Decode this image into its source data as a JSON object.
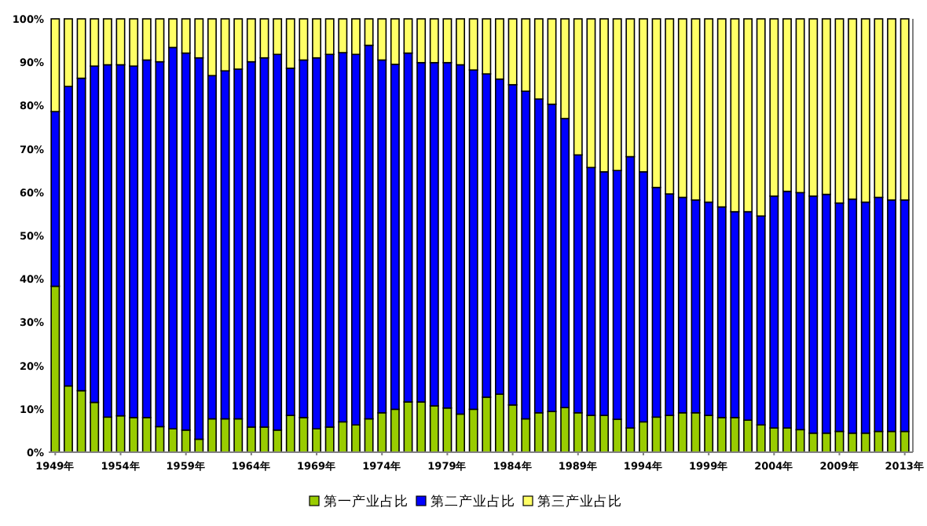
{
  "chart_data": {
    "type": "bar",
    "stacked": true,
    "legend": "bottom",
    "categories": [
      "1949年",
      null,
      null,
      null,
      null,
      "1954年",
      null,
      null,
      null,
      null,
      "1959年",
      null,
      null,
      null,
      null,
      "1964年",
      null,
      null,
      null,
      null,
      "1969年",
      null,
      null,
      null,
      null,
      "1974年",
      null,
      null,
      null,
      null,
      "1979年",
      null,
      null,
      null,
      null,
      "1984年",
      null,
      null,
      null,
      null,
      "1989年",
      null,
      null,
      null,
      null,
      "1994年",
      null,
      null,
      null,
      null,
      "1999年",
      null,
      null,
      null,
      null,
      "2004年",
      null,
      null,
      null,
      null,
      "2009年",
      null,
      null,
      null,
      null,
      "2013年"
    ],
    "ylim": [
      0,
      100
    ],
    "yticks": [
      {
        "value": 0,
        "label": "0%"
      },
      {
        "value": 10,
        "label": "10%"
      },
      {
        "value": 20,
        "label": "20%"
      },
      {
        "value": 30,
        "label": "30%"
      },
      {
        "value": 40,
        "label": "40%"
      },
      {
        "value": 50,
        "label": "50%"
      },
      {
        "value": 60,
        "label": "60%"
      },
      {
        "value": 70,
        "label": "70%"
      },
      {
        "value": 80,
        "label": "80%"
      },
      {
        "value": 90,
        "label": "90%"
      },
      {
        "value": 100,
        "label": "100%"
      }
    ],
    "series": [
      {
        "name": "第一产业占比",
        "color": "#99cc00",
        "values": [
          38.3,
          15.3,
          14.2,
          11.5,
          8.1,
          8.4,
          8.0,
          8.0,
          5.9,
          5.4,
          5.1,
          3.0,
          7.7,
          7.7,
          7.7,
          5.8,
          5.8,
          5.1,
          8.5,
          8.0,
          5.4,
          5.8,
          7.0,
          6.3,
          7.7,
          9.1,
          9.9,
          11.6,
          11.6,
          10.7,
          10.2,
          8.8,
          9.9,
          12.7,
          13.4,
          10.9,
          7.7,
          9.1,
          9.4,
          10.3,
          9.1,
          8.5,
          8.5,
          7.6,
          5.6,
          7.0,
          8.1,
          8.5,
          9.1,
          9.1,
          8.5,
          8.0,
          8.0,
          7.4,
          6.3,
          5.6,
          5.6,
          5.2,
          4.4,
          4.4,
          4.8,
          4.4,
          4.4,
          4.8,
          4.8,
          4.8
        ]
      },
      {
        "name": "第二产业占比",
        "color": "#0000ff",
        "values": [
          40.3,
          69.1,
          72.1,
          77.6,
          81.3,
          81.0,
          81.1,
          82.5,
          84.2,
          88.0,
          87.0,
          88.0,
          79.2,
          80.3,
          80.7,
          84.3,
          85.2,
          86.7,
          80.1,
          82.5,
          85.6,
          86.0,
          85.2,
          85.5,
          86.2,
          81.4,
          79.6,
          80.5,
          78.3,
          79.2,
          79.7,
          80.6,
          78.3,
          74.6,
          72.7,
          73.9,
          75.6,
          72.4,
          70.9,
          66.7,
          59.5,
          57.2,
          56.2,
          57.4,
          62.6,
          57.7,
          53.0,
          51.1,
          49.7,
          49.1,
          49.2,
          48.6,
          47.5,
          48.1,
          48.2,
          53.5,
          54.6,
          54.7,
          54.7,
          55.1,
          52.7,
          54.0,
          53.3,
          54.0,
          53.4,
          53.4
        ]
      },
      {
        "name": "第三产业占比",
        "color": "#ffff66",
        "values": [
          21.4,
          15.6,
          13.7,
          10.9,
          10.6,
          10.6,
          10.9,
          9.5,
          9.9,
          6.6,
          7.9,
          9.0,
          13.1,
          12.0,
          11.6,
          9.9,
          9.0,
          8.2,
          11.4,
          9.5,
          9.0,
          8.2,
          7.8,
          8.2,
          6.1,
          9.5,
          10.5,
          7.9,
          10.1,
          10.1,
          10.1,
          10.6,
          11.8,
          12.7,
          13.9,
          15.2,
          16.7,
          18.5,
          19.7,
          23.0,
          31.4,
          34.3,
          35.3,
          35.0,
          31.8,
          35.3,
          38.9,
          40.4,
          41.2,
          41.8,
          42.3,
          43.4,
          44.5,
          44.5,
          45.5,
          40.9,
          39.8,
          40.1,
          40.9,
          40.5,
          42.5,
          41.6,
          42.3,
          41.2,
          41.8,
          41.8
        ]
      }
    ]
  }
}
